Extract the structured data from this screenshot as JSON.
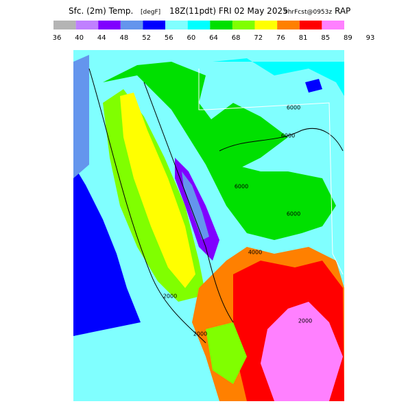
{
  "header": {
    "title": "Sfc. (2m) Temp.",
    "unit": "[degF]",
    "valid_time": "18Z(11pdt) FRI 02 May 2025",
    "forecast": "9hrFcst@0953z",
    "model": "RAP"
  },
  "colorbar": {
    "colors": [
      "#b4b4b4",
      "#c080ff",
      "#8000ff",
      "#6495ed",
      "#0000ff",
      "#80ffff",
      "#00ffff",
      "#00e000",
      "#80ff00",
      "#ffff00",
      "#ff8000",
      "#ff0000",
      "#ff80ff"
    ],
    "labels": [
      "36",
      "40",
      "44",
      "48",
      "52",
      "56",
      "60",
      "64",
      "68",
      "72",
      "76",
      "81",
      "85",
      "89",
      "93"
    ]
  },
  "contour_labels": [
    "6000",
    "6000",
    "6000",
    "6000",
    "2000",
    "2000",
    "2000",
    "4000"
  ]
}
